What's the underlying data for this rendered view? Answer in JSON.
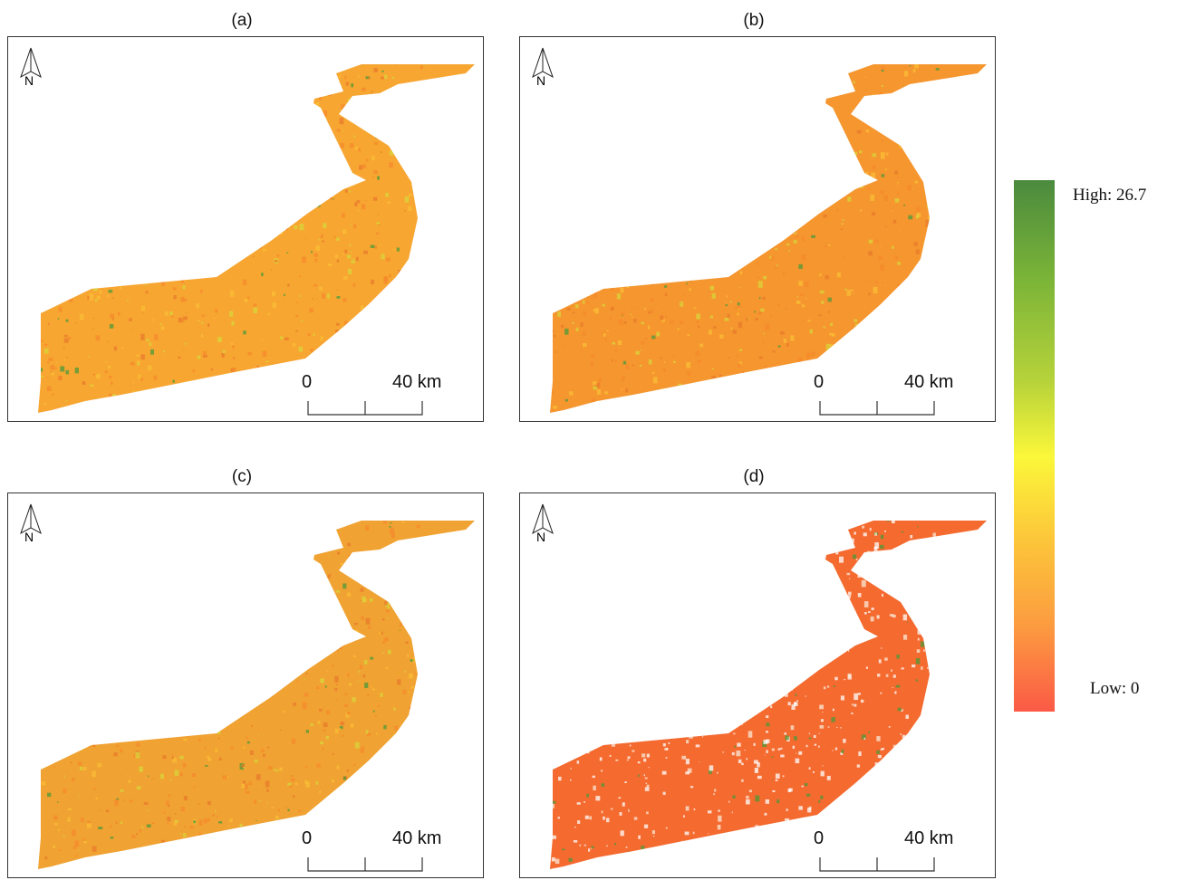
{
  "panels": [
    {
      "label": "(a)",
      "north": "N",
      "scale_start": "0",
      "scale_end": "40 km"
    },
    {
      "label": "(b)",
      "north": "N",
      "scale_start": "0",
      "scale_end": "40 km"
    },
    {
      "label": "(c)",
      "north": "N",
      "scale_start": "0",
      "scale_end": "40 km"
    },
    {
      "label": "(d)",
      "north": "N",
      "scale_start": "0",
      "scale_end": "40 km"
    }
  ],
  "legend": {
    "high_label": "High: 26.7",
    "low_label": "Low: 0",
    "high_value": 26.7,
    "low_value": 0,
    "colors": [
      "#4b8a3e",
      "#79b338",
      "#b7d33a",
      "#fbf73a",
      "#fcc53a",
      "#fc9b40",
      "#fb5a46"
    ]
  },
  "map_colors": {
    "a": "#f7a631",
    "b": "#f5962f",
    "c": "#f0a232",
    "d": "#f46a2f",
    "green_patch": "#4c9a3a",
    "yellow_patch": "#d9d43a"
  }
}
